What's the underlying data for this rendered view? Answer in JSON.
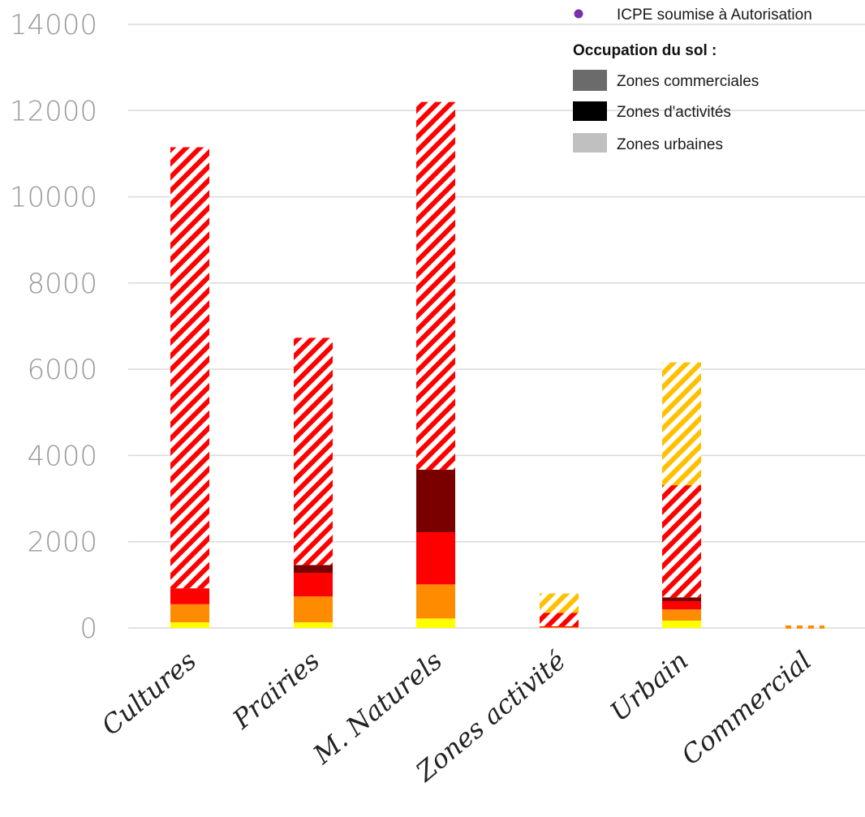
{
  "chart_data": {
    "type": "bar",
    "stacked": true,
    "categories": [
      "Cultures",
      "Prairies",
      "M. Naturels",
      "Zones activité",
      "Urbain",
      "Commercial"
    ],
    "ylim": [
      0,
      14000
    ],
    "yticks": [
      0,
      2000,
      4000,
      6000,
      8000,
      10000,
      12000,
      14000
    ],
    "ytick_labels": [
      "0",
      "2000",
      "4000",
      "6000",
      "8000",
      "10000",
      "12000",
      "14000"
    ],
    "grid": true,
    "series": [
      {
        "color": "#ffff00",
        "pattern": "solid",
        "values": [
          130,
          130,
          220,
          0,
          170,
          0
        ]
      },
      {
        "color": "#ff8c00",
        "pattern": "solid",
        "values": [
          420,
          600,
          790,
          20,
          260,
          0
        ]
      },
      {
        "color": "#ff0000",
        "pattern": "solid",
        "values": [
          370,
          550,
          1210,
          20,
          190,
          0
        ]
      },
      {
        "color": "#7a0000",
        "pattern": "solid",
        "values": [
          0,
          180,
          1450,
          0,
          90,
          0
        ]
      },
      {
        "color": "#ff0000",
        "pattern": "hatched",
        "values": [
          10230,
          5270,
          8530,
          310,
          2600,
          0
        ]
      },
      {
        "color": "#ffc000",
        "pattern": "hatched",
        "values": [
          0,
          0,
          0,
          450,
          2850,
          0
        ]
      },
      {
        "color": "#ff8c00",
        "pattern": "dashed-line",
        "values": [
          0,
          0,
          0,
          0,
          0,
          40
        ]
      }
    ],
    "legend": {
      "position": "top-right",
      "items": [
        {
          "label": "ICPE soumise à Autorisation",
          "marker": "dot",
          "color": "#7b2fa8"
        }
      ],
      "title": "Occupation du sol :",
      "swatches": [
        {
          "label": "Zones commerciales",
          "color": "#6b6b6b"
        },
        {
          "label": "Zones d'activités",
          "color": "#000000"
        },
        {
          "label": "Zones urbaines",
          "color": "#c0c0c0"
        }
      ]
    }
  }
}
